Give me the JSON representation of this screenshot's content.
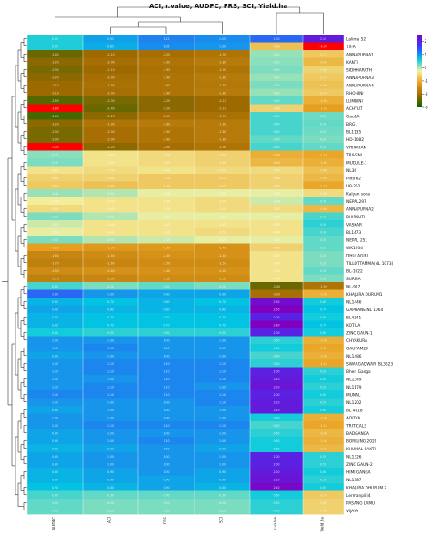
{
  "chart_data": {
    "type": "heatmap",
    "title": "ACI, r.value, AUDPC, FRS, SCI, Yield.ha",
    "columns": [
      "AUDPC",
      "ACI",
      "FRS",
      "SCI",
      "r.value",
      "Yield.ha"
    ],
    "rows": [
      "Lalima 52",
      "TX-A",
      "ANNAPURNA1",
      "KANTI",
      "SIDHHARATH",
      "ANNAPURNA3",
      "ANNAPURNA4",
      "RHOHINI",
      "LUMBINI",
      "ACHYUT",
      "GauRA",
      "BRG1",
      "BL1135",
      "HD-1082",
      "VHINAYAK",
      "TRIVENI",
      "MUDULE-1",
      "NL36",
      "Pilto 62",
      "UP-262",
      "Kalyan sona",
      "NEPAL297",
      "ANNAPURNA2",
      "BHIRKUTI",
      "VASKAR",
      "BL1473",
      "NEPAL 251",
      "WK1204",
      "DHULAGIRI",
      "TILLOTTAMMA(NL 1073)",
      "BL-1022",
      "SURMA",
      "NL-917",
      "KHAJURA DURUM1",
      "NL1446",
      "GAPHANE NL 1064",
      "BL4341",
      "KOTILA",
      "ZINC GAUN-1",
      "CHYAKURA",
      "GAUTAM29",
      "NL1486",
      "SWARGADWARI BL3623",
      "Bheri Ganga",
      "NL1349",
      "NL1179",
      "MUNAL",
      "NL1202",
      "BL 4818",
      "ADITYA",
      "TRITICAL3",
      "BADGANGA",
      "BORLUNG 2020",
      "KHUMAL SAKTI",
      "NL1326",
      "ZINC GAUN-2",
      "HIMI GANGA",
      "NL1387",
      "KHAJURA DHURUM 2",
      "Lermanpilli4",
      "PASANG LAMU",
      "VIJAYA"
    ],
    "values": [
      [
        0.55,
        0.92,
        1.12,
        1.05,
        1.3,
        2.1
      ],
      [
        0.55,
        0.85,
        1.05,
        1.0,
        -0.8,
        -3.0
      ],
      [
        -2.4,
        -2.1,
        -2.0,
        -1.9,
        0.1,
        -0.72
      ],
      [
        -2.2,
        -2.0,
        -1.9,
        -1.8,
        0.15,
        -0.9
      ],
      [
        -2.3,
        -2.1,
        -1.95,
        -1.9,
        0.2,
        -0.6
      ],
      [
        -2.2,
        -2.0,
        -1.9,
        -1.8,
        0.1,
        -0.7
      ],
      [
        -2.1,
        -1.95,
        -1.9,
        -1.85,
        0.2,
        -0.8
      ],
      [
        -2.1,
        -2.0,
        -1.9,
        -1.8,
        0.1,
        -0.7
      ],
      [
        -2.5,
        -2.3,
        -2.2,
        -2.1,
        0.3,
        -1.0
      ],
      [
        -2.8,
        -2.4,
        -2.2,
        -2.1,
        -0.6,
        -1.2
      ],
      [
        -2.6,
        -2.2,
        -2.0,
        -1.95,
        0.4,
        0.25
      ],
      [
        -2.2,
        -1.9,
        -1.8,
        -1.8,
        0.4,
        0.3
      ],
      [
        -2.3,
        -2.0,
        -1.9,
        -1.8,
        0.4,
        0.25
      ],
      [
        -2.3,
        -2.0,
        -1.9,
        -1.8,
        0.3,
        0.2
      ],
      [
        -3.0,
        -2.2,
        -2.0,
        -1.9,
        0.4,
        0.3
      ],
      [
        0.15,
        -0.4,
        -0.5,
        -0.6,
        -1.0,
        -1.1
      ],
      [
        0.2,
        -0.4,
        -0.5,
        -0.6,
        -0.9,
        -1.0
      ],
      [
        -0.4,
        -0.5,
        -0.4,
        -0.5,
        -0.5,
        -0.8
      ],
      [
        -0.6,
        -0.6,
        -0.7,
        -0.7,
        -0.6,
        -0.9
      ],
      [
        -0.7,
        -0.8,
        -0.7,
        -0.7,
        -0.6,
        -1.1
      ],
      [
        0.1,
        0.0,
        -0.2,
        -0.2,
        -0.2,
        -0.5
      ],
      [
        -0.3,
        -0.4,
        -0.4,
        -0.5,
        -0.1,
        0.3
      ],
      [
        -0.5,
        -0.4,
        -0.4,
        -0.5,
        -0.5,
        -0.9
      ],
      [
        0.2,
        0.0,
        -0.2,
        -0.2,
        -0.2,
        0.4
      ],
      [
        -0.1,
        -0.4,
        -0.4,
        -0.4,
        -0.4,
        0.5
      ],
      [
        -0.2,
        -0.4,
        -0.4,
        -0.5,
        -0.4,
        0.4
      ],
      [
        0.2,
        0.0,
        -0.1,
        -0.2,
        -0.2,
        0.3
      ],
      [
        -1.2,
        -1.3,
        -1.3,
        -1.4,
        -0.6,
        0.3
      ],
      [
        -1.6,
        -1.5,
        -1.4,
        -1.4,
        -0.4,
        0.2
      ],
      [
        -1.7,
        -1.6,
        -1.5,
        -1.5,
        -0.4,
        0.2
      ],
      [
        -1.5,
        -1.4,
        -1.4,
        -1.4,
        -0.4,
        0.3
      ],
      [
        -1.7,
        -1.6,
        -1.5,
        -1.5,
        -0.4,
        0.2
      ],
      [
        0.4,
        0.2,
        0.3,
        0.2,
        -2.4,
        -1.9
      ],
      [
        1.3,
        1.0,
        0.9,
        0.9,
        -2.0,
        -1.0
      ],
      [
        0.8,
        0.7,
        0.8,
        0.7,
        2.3,
        0.6
      ],
      [
        0.9,
        0.8,
        0.8,
        0.8,
        2.5,
        0.7
      ],
      [
        0.8,
        0.7,
        0.7,
        0.7,
        2.0,
        0.6
      ],
      [
        0.8,
        0.7,
        0.7,
        0.7,
        2.8,
        0.7
      ],
      [
        0.6,
        0.5,
        0.5,
        0.5,
        2.0,
        0.6
      ],
      [
        1.0,
        1.0,
        1.0,
        1.0,
        0.5,
        -1.0
      ],
      [
        1.0,
        1.1,
        1.0,
        1.0,
        0.6,
        -1.1
      ],
      [
        0.9,
        1.0,
        1.0,
        1.0,
        0.4,
        -1.0
      ],
      [
        1.0,
        1.1,
        1.1,
        1.1,
        0.5,
        -1.1
      ],
      [
        1.0,
        1.1,
        1.1,
        1.1,
        2.0,
        0.5
      ],
      [
        1.0,
        1.0,
        1.1,
        1.1,
        2.1,
        0.6
      ],
      [
        1.0,
        1.1,
        1.1,
        1.0,
        2.2,
        0.5
      ],
      [
        1.1,
        1.1,
        1.1,
        1.1,
        2.0,
        0.6
      ],
      [
        1.0,
        1.0,
        1.0,
        1.1,
        2.1,
        0.5
      ],
      [
        0.9,
        1.0,
        1.0,
        1.0,
        2.1,
        0.6
      ],
      [
        1.0,
        1.0,
        1.0,
        1.0,
        0.6,
        -1.0
      ],
      [
        1.0,
        1.1,
        1.1,
        1.1,
        0.4,
        -1.1
      ],
      [
        0.9,
        1.0,
        1.0,
        1.0,
        0.5,
        -0.9
      ],
      [
        0.9,
        1.0,
        1.1,
        1.0,
        0.6,
        -1.0
      ],
      [
        0.8,
        0.9,
        1.0,
        0.9,
        0.6,
        -0.9
      ],
      [
        0.9,
        1.0,
        1.0,
        1.0,
        2.0,
        0.5
      ],
      [
        0.9,
        1.0,
        1.0,
        1.0,
        2.0,
        0.5
      ],
      [
        0.8,
        0.9,
        1.0,
        0.9,
        2.1,
        0.6
      ],
      [
        0.8,
        0.9,
        0.9,
        0.9,
        2.2,
        0.5
      ],
      [
        0.7,
        0.8,
        0.9,
        0.8,
        2.4,
        0.6
      ],
      [
        0.4,
        0.3,
        0.3,
        0.3,
        0.6,
        -0.7
      ],
      [
        0.3,
        0.2,
        0.2,
        0.2,
        0.5,
        -0.6
      ],
      [
        0.3,
        0.2,
        0.2,
        0.2,
        0.5,
        -0.6
      ]
    ],
    "legend_ticks": [
      "2",
      "1",
      "0",
      "-1",
      "-2",
      "-3"
    ],
    "legend_range": [
      -3,
      2.5
    ],
    "legend_placement": "top-right",
    "colors": {
      "scale": [
        "#006400",
        "#a06a00",
        "#e8a020",
        "#f4f0a0",
        "#00c8e0",
        "#3c3cff",
        "#8000c0"
      ],
      "low": "#ff0000",
      "gridline": "#ffffff"
    },
    "grid": false
  }
}
